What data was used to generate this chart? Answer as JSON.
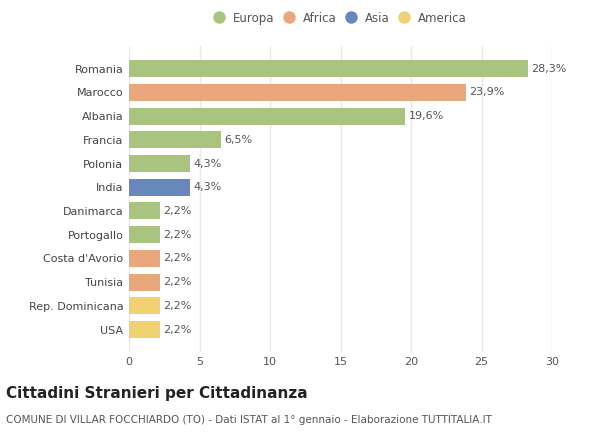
{
  "categories": [
    "Romania",
    "Marocco",
    "Albania",
    "Francia",
    "Polonia",
    "India",
    "Danimarca",
    "Portogallo",
    "Costa d'Avorio",
    "Tunisia",
    "Rep. Dominicana",
    "USA"
  ],
  "values": [
    28.3,
    23.9,
    19.6,
    6.5,
    4.3,
    4.3,
    2.2,
    2.2,
    2.2,
    2.2,
    2.2,
    2.2
  ],
  "labels": [
    "28,3%",
    "23,9%",
    "19,6%",
    "6,5%",
    "4,3%",
    "4,3%",
    "2,2%",
    "2,2%",
    "2,2%",
    "2,2%",
    "2,2%",
    "2,2%"
  ],
  "colors": [
    "#a8c47e",
    "#e8a87c",
    "#a8c47e",
    "#a8c47e",
    "#a8c47e",
    "#6688bb",
    "#a8c47e",
    "#a8c47e",
    "#e8a87c",
    "#e8a87c",
    "#f0d070",
    "#f0d070"
  ],
  "legend_labels": [
    "Europa",
    "Africa",
    "Asia",
    "America"
  ],
  "legend_colors": [
    "#a8c47e",
    "#e8a87c",
    "#6688bb",
    "#f0d070"
  ],
  "xlim": [
    0,
    30
  ],
  "xticks": [
    0,
    5,
    10,
    15,
    20,
    25,
    30
  ],
  "title": "Cittadini Stranieri per Cittadinanza",
  "subtitle": "COMUNE DI VILLAR FOCCHIARDO (TO) - Dati ISTAT al 1° gennaio - Elaborazione TUTTITALIA.IT",
  "bg_color": "#ffffff",
  "grid_color": "#e8e8e8",
  "bar_height": 0.72,
  "label_fontsize": 8,
  "tick_fontsize": 8,
  "title_fontsize": 11,
  "subtitle_fontsize": 7.5
}
